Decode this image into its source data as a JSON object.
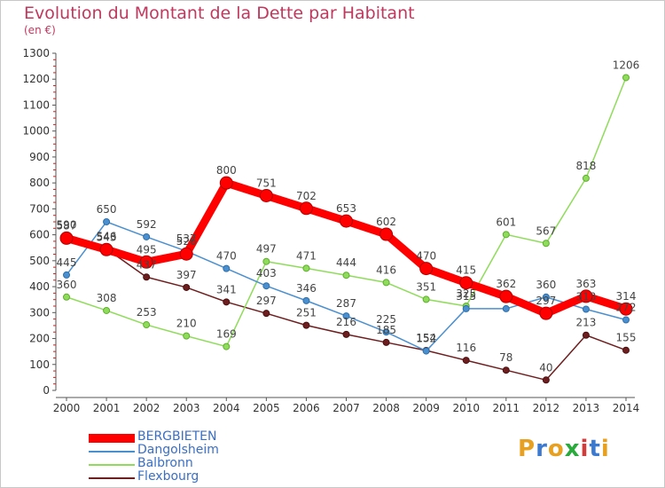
{
  "chart_data": {
    "type": "line",
    "title": "Evolution du Montant de la Dette par Habitant",
    "unit_label": "(en €)",
    "x": [
      "2000",
      "2001",
      "2002",
      "2003",
      "2004",
      "2005",
      "2006",
      "2007",
      "2008",
      "2009",
      "2010",
      "2011",
      "2012",
      "2013",
      "2014"
    ],
    "yticks": [
      0,
      100,
      200,
      300,
      400,
      500,
      600,
      700,
      800,
      900,
      1000,
      1100,
      1200,
      1300
    ],
    "ylim": [
      0,
      1300
    ],
    "grid": false,
    "legend_position": "bottom-left",
    "series": [
      {
        "name": "BERGBIETEN",
        "color": "#ff0000",
        "values": [
          587,
          543,
          495,
          526,
          800,
          751,
          702,
          653,
          602,
          470,
          415,
          362,
          297,
          363,
          314
        ],
        "labels": [
          "587",
          "543",
          "495",
          "526",
          "800",
          "751",
          "702",
          "653",
          "602",
          "470",
          "415",
          "362",
          "297",
          "363",
          "314"
        ]
      },
      {
        "name": "Dangolsheim",
        "color": "#4a8fcf",
        "values": [
          445,
          650,
          592,
          537,
          470,
          403,
          346,
          287,
          225,
          152,
          315,
          315,
          360,
          313,
          272
        ],
        "labels": [
          "445",
          "650",
          "592",
          "537",
          "470",
          "403",
          "346",
          "287",
          "225",
          "152",
          "315",
          "",
          "360",
          "313",
          "272"
        ]
      },
      {
        "name": "Balbronn",
        "color": "#8fdc5a",
        "values": [
          360,
          308,
          253,
          210,
          169,
          497,
          471,
          444,
          416,
          351,
          325,
          601,
          567,
          818,
          1206
        ],
        "labels": [
          "360",
          "308",
          "253",
          "210",
          "169",
          "497",
          "471",
          "444",
          "416",
          "351",
          "325",
          "601",
          "567",
          "818",
          "1206"
        ]
      },
      {
        "name": "Flexbourg",
        "color": "#6e1e1e",
        "values": [
          590,
          546,
          437,
          397,
          341,
          297,
          251,
          216,
          185,
          154,
          116,
          78,
          40,
          213,
          155
        ],
        "labels": [
          "590",
          "546",
          "437",
          "397",
          "341",
          "297",
          "251",
          "216",
          "185",
          "154",
          "116",
          "78",
          "40",
          "213",
          "155"
        ]
      }
    ]
  },
  "logo_text": "Proxiti",
  "logo_colors": [
    "#e8a020",
    "#3c7ad0",
    "#e8a020",
    "#2aaa3c",
    "#d23c3c",
    "#3c7ad0",
    "#e8a020"
  ]
}
